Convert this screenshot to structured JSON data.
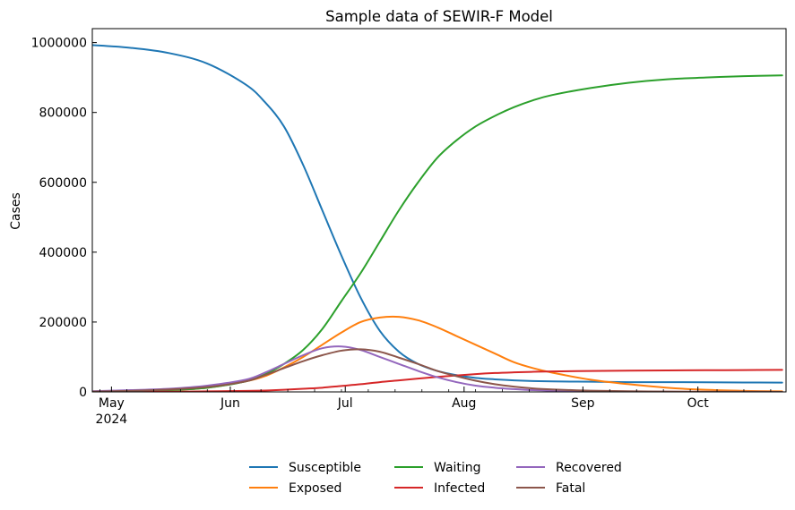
{
  "chart_data": {
    "type": "line",
    "title": "Sample data of SEWIR-F Model",
    "xlabel": "",
    "ylabel": "Cases",
    "x_axis": {
      "start": "2024-04-26",
      "end": "2024-10-24",
      "ticks": [
        {
          "date": "2024-05-01",
          "label": "May",
          "sublabel": "2024"
        },
        {
          "date": "2024-06-01",
          "label": "Jun"
        },
        {
          "date": "2024-07-01",
          "label": "Jul"
        },
        {
          "date": "2024-08-01",
          "label": "Aug"
        },
        {
          "date": "2024-09-01",
          "label": "Sep"
        },
        {
          "date": "2024-10-01",
          "label": "Oct"
        }
      ]
    },
    "ylim": [
      0,
      1040000
    ],
    "yticks": [
      {
        "value": 0,
        "label": "0"
      },
      {
        "value": 200000,
        "label": "200000"
      },
      {
        "value": 400000,
        "label": "400000"
      },
      {
        "value": 600000,
        "label": "600000"
      },
      {
        "value": 800000,
        "label": "800000"
      },
      {
        "value": 1000000,
        "label": "1000000"
      }
    ],
    "grid": false,
    "legend_position": "bottom-center",
    "x": [
      "2024-04-26",
      "2024-05-06",
      "2024-05-16",
      "2024-05-26",
      "2024-06-05",
      "2024-06-10",
      "2024-06-15",
      "2024-06-20",
      "2024-06-25",
      "2024-06-30",
      "2024-07-05",
      "2024-07-10",
      "2024-07-15",
      "2024-07-20",
      "2024-07-25",
      "2024-07-30",
      "2024-08-04",
      "2024-08-09",
      "2024-08-14",
      "2024-08-19",
      "2024-08-24",
      "2024-09-03",
      "2024-09-13",
      "2024-09-23",
      "2024-10-03",
      "2024-10-13",
      "2024-10-23"
    ],
    "series": [
      {
        "name": "Susceptible",
        "color": "#1f77b4",
        "values": [
          993000,
          985000,
          970000,
          940000,
          880000,
          830000,
          760000,
          650000,
          520000,
          390000,
          270000,
          175000,
          115000,
          80000,
          60000,
          48000,
          40000,
          36000,
          33000,
          31000,
          30000,
          29000,
          28000,
          28000,
          27500,
          27000,
          26500
        ]
      },
      {
        "name": "Exposed",
        "color": "#ff7f0e",
        "values": [
          1000,
          2000,
          5000,
          12000,
          30000,
          45000,
          70000,
          100000,
          135000,
          170000,
          200000,
          213000,
          215000,
          205000,
          185000,
          160000,
          135000,
          110000,
          85000,
          68000,
          55000,
          35000,
          22000,
          12000,
          6000,
          3000,
          1500
        ]
      },
      {
        "name": "Waiting",
        "color": "#2ca02c",
        "values": [
          1000,
          2000,
          5000,
          12000,
          30000,
          50000,
          80000,
          120000,
          180000,
          260000,
          340000,
          430000,
          520000,
          600000,
          670000,
          720000,
          760000,
          790000,
          815000,
          835000,
          850000,
          870000,
          885000,
          895000,
          900000,
          904000,
          906000
        ]
      },
      {
        "name": "Infected",
        "color": "#d62728",
        "values": [
          0,
          300,
          800,
          1500,
          3000,
          4000,
          6000,
          9000,
          12000,
          17000,
          22000,
          28000,
          33000,
          38000,
          43000,
          47000,
          51000,
          54000,
          56000,
          57500,
          58500,
          60000,
          61000,
          61500,
          62000,
          62500,
          63000
        ]
      },
      {
        "name": "Recovered",
        "color": "#9467bd",
        "values": [
          2000,
          5000,
          9000,
          18000,
          35000,
          55000,
          80000,
          105000,
          125000,
          130000,
          120000,
          100000,
          80000,
          60000,
          42000,
          28000,
          18000,
          12000,
          8000,
          5000,
          3500,
          1800,
          1000,
          500,
          300,
          200,
          100
        ]
      },
      {
        "name": "Fatal",
        "color": "#8c564b",
        "values": [
          1000,
          3000,
          7000,
          14000,
          30000,
          48000,
          68000,
          88000,
          105000,
          118000,
          122000,
          115000,
          98000,
          80000,
          60000,
          45000,
          32000,
          22000,
          15000,
          10000,
          7000,
          3500,
          1800,
          900,
          450,
          250,
          120
        ]
      }
    ]
  }
}
